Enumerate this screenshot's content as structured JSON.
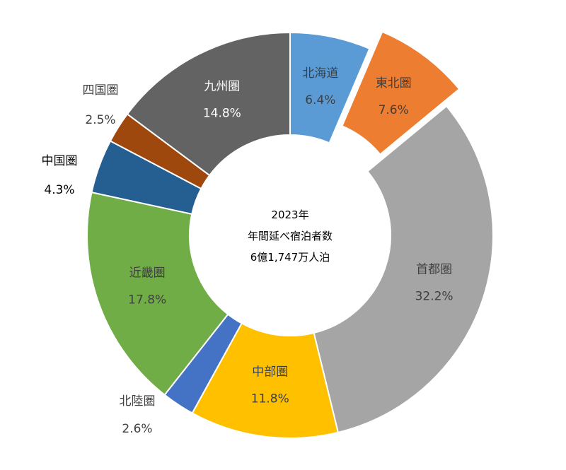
{
  "chart_data": {
    "type": "pie",
    "variant": "donut",
    "center_label": [
      "2023年",
      "年間延べ宿泊者数",
      "6億1,747万人泊"
    ],
    "slices": [
      {
        "name": "北海道",
        "value_label": "6.4%",
        "value": 6.4,
        "color": "#5b9bd5",
        "label_color": "#3f3f3f",
        "exploded": false,
        "label_outside": false
      },
      {
        "name": "東北圏",
        "value_label": "7.6%",
        "value": 7.6,
        "color": "#ed7d31",
        "label_color": "#3f3f3f",
        "exploded": true,
        "label_outside": false
      },
      {
        "name": "首都圏",
        "value_label": "32.2%",
        "value": 32.2,
        "color": "#a5a5a5",
        "label_color": "#3f3f3f",
        "exploded": false,
        "label_outside": false
      },
      {
        "name": "中部圏",
        "value_label": "11.8%",
        "value": 11.8,
        "color": "#ffc000",
        "label_color": "#3f3f3f",
        "exploded": false,
        "label_outside": false
      },
      {
        "name": "北陸圏",
        "value_label": "2.6%",
        "value": 2.6,
        "color": "#4472c4",
        "label_color": "#3f3f3f",
        "exploded": false,
        "label_outside": true
      },
      {
        "name": "近畿圏",
        "value_label": "17.8%",
        "value": 17.8,
        "color": "#70ad47",
        "label_color": "#3f3f3f",
        "exploded": false,
        "label_outside": false
      },
      {
        "name": "中国圏",
        "value_label": "4.3%",
        "value": 4.3,
        "color": "#255e91",
        "label_color": "#000000",
        "exploded": false,
        "label_outside": true
      },
      {
        "name": "四国圏",
        "value_label": "2.5%",
        "value": 2.5,
        "color": "#9e480e",
        "label_color": "#3f3f3f",
        "exploded": false,
        "label_outside": true
      },
      {
        "name": "九州圏",
        "value_label": "14.8%",
        "value": 14.8,
        "color": "#636363",
        "label_color": "#ffffff",
        "exploded": false,
        "label_outside": false
      }
    ]
  }
}
